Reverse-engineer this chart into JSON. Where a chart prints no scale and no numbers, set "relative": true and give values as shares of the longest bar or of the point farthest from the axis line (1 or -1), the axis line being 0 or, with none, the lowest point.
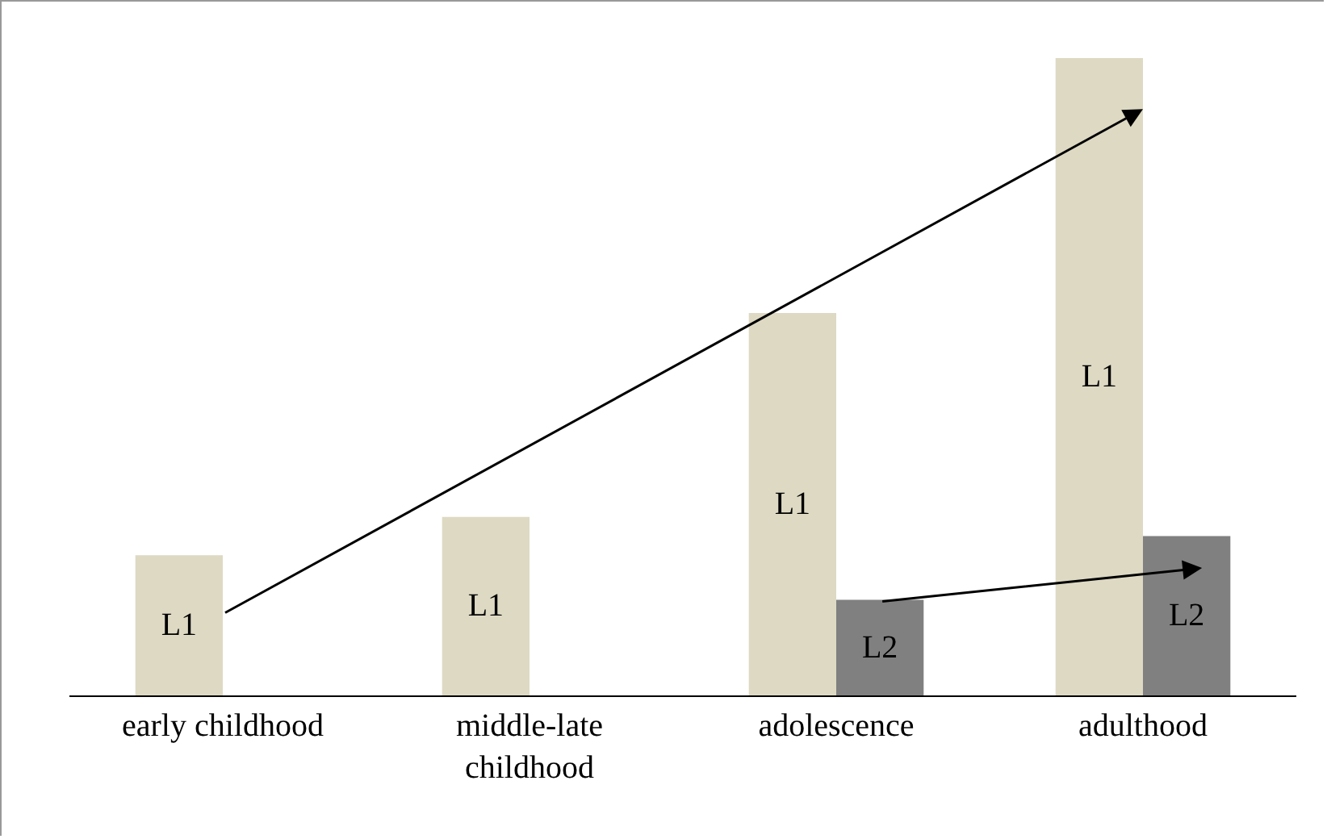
{
  "chart_data": {
    "type": "bar",
    "relative": true,
    "categories": [
      "early childhood",
      "middle-late childhood",
      "adolescence",
      "adulthood"
    ],
    "series": [
      {
        "name": "L1",
        "color": "#ddd9c3",
        "values": [
          0.22,
          0.28,
          0.6,
          1
        ]
      },
      {
        "name": "L2",
        "color": "#808080",
        "values": [
          null,
          null,
          0.15,
          0.25
        ]
      }
    ],
    "legend": false,
    "grid": false
  }
}
